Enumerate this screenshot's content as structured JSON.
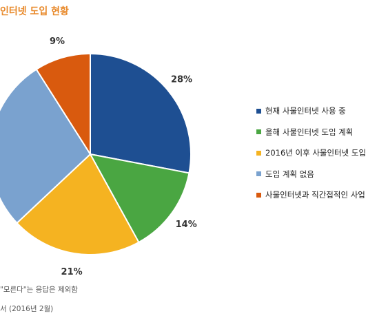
{
  "header": {
    "title": "인터넷 도입 현황"
  },
  "chart_data": {
    "type": "pie",
    "title": "인터넷 도입 현황",
    "categories": [
      "현재 사물인터넷 사용 중",
      "올해 사물인터넷 도입 계획",
      "2016년 이후 사물인터넷 도입",
      "도입 계획 없음",
      "사물인터넷과 직간접적인 사업"
    ],
    "values": [
      28,
      14,
      21,
      28,
      9
    ],
    "labels": [
      "28%",
      "14%",
      "21%",
      "",
      "9%"
    ],
    "colors": [
      "#1e4f92",
      "#4aa642",
      "#f5b321",
      "#7aa2cf",
      "#d95a0e"
    ],
    "start_angle_deg": 0,
    "direction": "clockwise",
    "legend_position": "right"
  },
  "footnotes": {
    "note1": "\"모른다\"는 응답은 제외함",
    "note2": "서 (2016년 2월)"
  }
}
